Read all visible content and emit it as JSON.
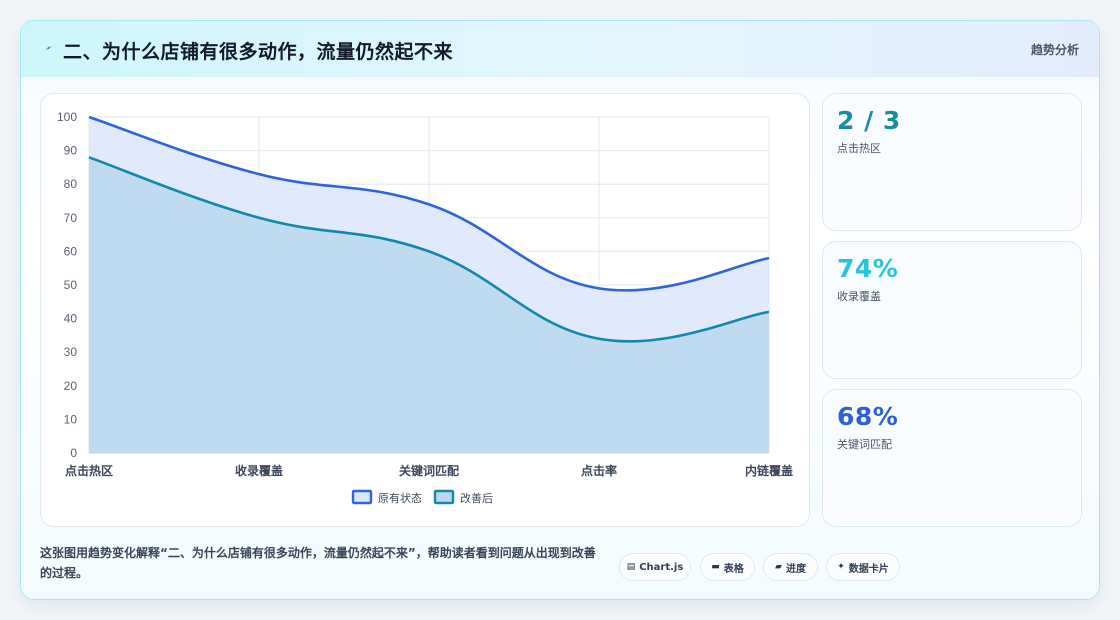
{
  "header": {
    "icon": "lightning-icon",
    "title": "二、为什么店铺有很多动作，流量仍然起不来",
    "tag": "趋势分析"
  },
  "chart_data": {
    "type": "area",
    "categories": [
      "点击热区",
      "收录覆盖",
      "关键词匹配",
      "点击率",
      "内链覆盖"
    ],
    "series": [
      {
        "name": "原有状态",
        "values": [
          100,
          83,
          74,
          49,
          58
        ],
        "color": "#2f63d9",
        "fill": "#dbe6fb"
      },
      {
        "name": "改善后",
        "values": [
          88,
          70,
          60,
          34,
          42
        ],
        "color": "#1189ab",
        "fill": "#bdd9ee"
      }
    ],
    "ylim": [
      0,
      100
    ],
    "yticks": [
      "0",
      "10",
      "20",
      "30",
      "40",
      "50",
      "60",
      "70",
      "80",
      "90",
      "100"
    ],
    "grid": true,
    "legend_position": "bottom"
  },
  "stats": [
    {
      "value": "2 / 3",
      "label": "点击热区",
      "color": "#158ea3"
    },
    {
      "value": "74%",
      "label": "收录覆盖",
      "color": "#28c3dd"
    },
    {
      "value": "68%",
      "label": "关键词匹配",
      "color": "#2d5fd6"
    }
  ],
  "footer": {
    "description": "这张图用趋势变化解释“二、为什么店铺有很多动作，流量仍然起不来”，帮助读者看到问题从出现到改善的过程。",
    "pills": [
      {
        "icon": "chart-icon",
        "glyph": "▤",
        "label": "Chart.js"
      },
      {
        "icon": "table-icon",
        "glyph": "▬",
        "label": "表格"
      },
      {
        "icon": "progress-icon",
        "glyph": "▰",
        "label": "进度"
      },
      {
        "icon": "sparkle-icon",
        "glyph": "✦",
        "label": "数据卡片"
      }
    ]
  }
}
